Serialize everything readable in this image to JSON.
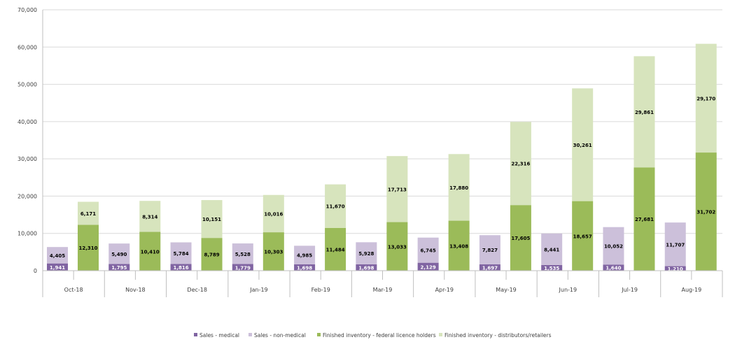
{
  "chart_data": {
    "type": "bar",
    "stacked": true,
    "grouping": "two stacked columns per month",
    "categories": [
      "Oct-18",
      "Nov-18",
      "Dec-18",
      "Jan-19",
      "Feb-19",
      "Mar-19",
      "Apr-19",
      "May-19",
      "Jun-19",
      "Jul-19",
      "Aug-19"
    ],
    "series": [
      {
        "name": "Sales - medical",
        "stack": "sales",
        "color": "#8064a2",
        "label_color": "#ffffff",
        "values": [
          1941,
          1795,
          1816,
          1779,
          1698,
          1698,
          2129,
          1697,
          1535,
          1640,
          1210
        ]
      },
      {
        "name": "Sales - non-medical",
        "stack": "sales",
        "color": "#ccc0da",
        "label_color": "#000000",
        "values": [
          4405,
          5490,
          5784,
          5528,
          4985,
          5928,
          6745,
          7827,
          8441,
          10052,
          11707
        ]
      },
      {
        "name": "Finished inventory - federal licence holders",
        "stack": "inventory",
        "color": "#9bbb59",
        "label_color": "#000000",
        "values": [
          12310,
          10410,
          8789,
          10303,
          11484,
          13033,
          13408,
          17605,
          18657,
          27681,
          31702
        ]
      },
      {
        "name": "Finished inventory - distributors/retailers",
        "stack": "inventory",
        "color": "#d7e4bd",
        "label_color": "#000000",
        "values": [
          6171,
          8314,
          10151,
          10016,
          11670,
          17713,
          17880,
          22316,
          30261,
          29861,
          29170
        ]
      }
    ],
    "ylim": [
      0,
      70000
    ],
    "yticks": [
      "0",
      "10,000",
      "20,000",
      "30,000",
      "40,000",
      "50,000",
      "60,000",
      "70,000"
    ],
    "ytick_values": [
      0,
      10000,
      20000,
      30000,
      40000,
      50000,
      60000,
      70000
    ],
    "grid": true,
    "legend": "bottom",
    "title": "",
    "xlabel": "",
    "ylabel": ""
  }
}
